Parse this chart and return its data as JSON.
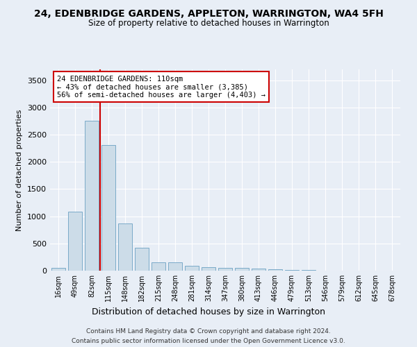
{
  "title": "24, EDENBRIDGE GARDENS, APPLETON, WARRINGTON, WA4 5FH",
  "subtitle": "Size of property relative to detached houses in Warrington",
  "xlabel": "Distribution of detached houses by size in Warrington",
  "ylabel": "Number of detached properties",
  "bar_color": "#ccdce8",
  "bar_edge_color": "#7aaac8",
  "line_color": "#cc0000",
  "annotation_text": "24 EDENBRIDGE GARDENS: 110sqm\n← 43% of detached houses are smaller (3,385)\n56% of semi-detached houses are larger (4,403) →",
  "categories": [
    "16sqm",
    "49sqm",
    "82sqm",
    "115sqm",
    "148sqm",
    "182sqm",
    "215sqm",
    "248sqm",
    "281sqm",
    "314sqm",
    "347sqm",
    "380sqm",
    "413sqm",
    "446sqm",
    "479sqm",
    "513sqm",
    "546sqm",
    "579sqm",
    "612sqm",
    "645sqm",
    "678sqm"
  ],
  "bar_heights": [
    50,
    1080,
    2750,
    2310,
    870,
    420,
    155,
    155,
    90,
    65,
    55,
    50,
    40,
    20,
    10,
    10,
    5,
    5,
    5,
    5,
    5
  ],
  "ylim": [
    0,
    3700
  ],
  "yticks": [
    0,
    500,
    1000,
    1500,
    2000,
    2500,
    3000,
    3500
  ],
  "footnote1": "Contains HM Land Registry data © Crown copyright and database right 2024.",
  "footnote2": "Contains public sector information licensed under the Open Government Licence v3.0.",
  "bg_color": "#e8eef6",
  "plot_bg_color": "#e8eef6"
}
